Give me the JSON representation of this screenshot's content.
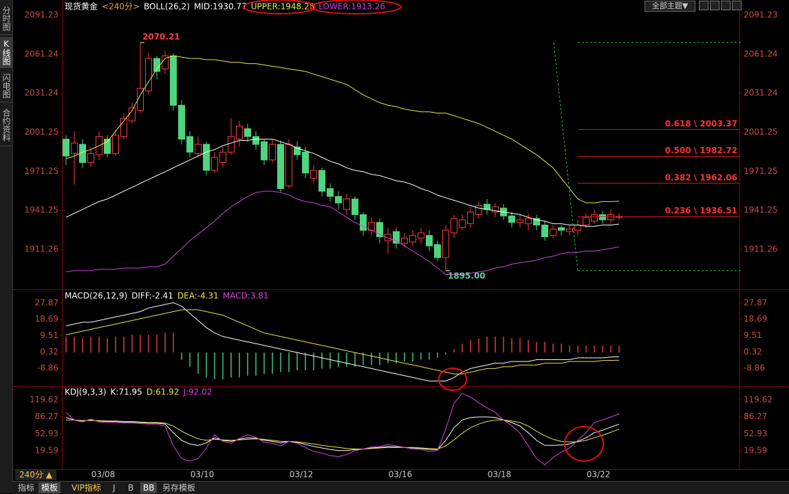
{
  "ui": {
    "side_tabs": [
      "分时图",
      "K线图",
      "闪电图",
      "合约资料"
    ],
    "theme": "全部主题▼",
    "period_button": "240分 ▲",
    "bottom_tabs": [
      "指标",
      "模板",
      "VIP指标",
      "J",
      "B",
      "BB",
      "另存模板"
    ]
  },
  "chart_data": [
    {
      "type": "candlestick",
      "title": "现货黄金",
      "period": "<240分>",
      "indicator": "BOLL(26,2)",
      "categories": [
        null,
        null,
        null,
        null,
        "03/08",
        null,
        null,
        null,
        null,
        null,
        null,
        null,
        null,
        null,
        null,
        null,
        "03/10",
        null,
        null,
        null,
        null,
        null,
        null,
        null,
        null,
        null,
        null,
        null,
        "03/12",
        null,
        null,
        null,
        null,
        null,
        null,
        null,
        null,
        null,
        null,
        null,
        "03/16",
        null,
        null,
        null,
        null,
        null,
        null,
        null,
        null,
        null,
        null,
        null,
        "03/18",
        null,
        null,
        null,
        null,
        null,
        null,
        null,
        null,
        null,
        null,
        null,
        "03/22",
        null,
        null,
        null
      ],
      "open": [
        1996,
        1985,
        1992,
        1978,
        1984,
        1996,
        1985,
        1998,
        2010,
        2018,
        2033,
        2058,
        2050,
        2060,
        2022,
        1998,
        1985,
        1992,
        1972,
        1978,
        1986,
        1996,
        2004,
        1998,
        1994,
        1980,
        1992,
        1960,
        1990,
        1986,
        1966,
        1972,
        1958,
        1952,
        1942,
        1950,
        1938,
        1926,
        1932,
        1918,
        1925,
        1916,
        1917,
        1920,
        1922,
        1915,
        1905,
        1924,
        1928,
        1931,
        1938,
        1946,
        1940,
        1943,
        1937,
        1932,
        1931,
        1935,
        1930,
        1922,
        1928,
        1925,
        1926,
        1930,
        1933,
        1938,
        1934,
        1936
      ],
      "high": [
        1999,
        2002,
        1996,
        1990,
        2002,
        1999,
        2003,
        2016,
        2024,
        2070.21,
        2062,
        2060,
        2064,
        2062,
        2026,
        2002,
        1998,
        1994,
        1986,
        1990,
        2012,
        2010,
        2008,
        2002,
        1996,
        1996,
        1995,
        1996,
        1994,
        1990,
        1976,
        1974,
        1962,
        1956,
        1954,
        1952,
        1940,
        1936,
        1935,
        1928,
        1928,
        1924,
        1926,
        1928,
        1926,
        1918,
        1930,
        1938,
        1938,
        1944,
        1948,
        1950,
        1947,
        1946,
        1940,
        1938,
        1939,
        1938,
        1933,
        1930,
        1930,
        1930,
        1934,
        1939,
        1942,
        1941,
        1942,
        1939
      ],
      "low": [
        1976,
        1961,
        1974,
        1975,
        1980,
        1982,
        1983,
        1996,
        2008,
        2016,
        2030,
        2042,
        2046,
        2018,
        1992,
        1982,
        1982,
        1968,
        1970,
        1974,
        1984,
        1990,
        1994,
        1988,
        1976,
        1978,
        1955,
        1958,
        1980,
        1966,
        1962,
        1952,
        1948,
        1942,
        1938,
        1934,
        1922,
        1922,
        1916,
        1908,
        1912,
        1913,
        1914,
        1916,
        1910,
        1902,
        1895,
        1920,
        1926,
        1928,
        1935,
        1938,
        1936,
        1934,
        1928,
        1928,
        1926,
        1926,
        1918,
        1920,
        1922,
        1922,
        1922,
        1928,
        1931,
        1931,
        1932,
        1934
      ],
      "close": [
        1983,
        1993,
        1978,
        1985,
        1998,
        1985,
        1999,
        2012,
        2020,
        2035,
        2058,
        2048,
        2060,
        2022,
        1996,
        1986,
        1992,
        1972,
        1982,
        1986,
        1998,
        2006,
        1998,
        1992,
        1980,
        1992,
        1958,
        1992,
        1984,
        1970,
        1972,
        1956,
        1952,
        1947,
        1950,
        1938,
        1926,
        1932,
        1921,
        1923,
        1916,
        1920,
        1922,
        1924,
        1914,
        1905,
        1926,
        1935,
        1934,
        1940,
        1945,
        1942,
        1944,
        1937,
        1932,
        1934,
        1935,
        1930,
        1921,
        1927,
        1926,
        1927,
        1930,
        1936,
        1938,
        1934,
        1938,
        1936.51
      ],
      "up_color": "#ff3c3c",
      "down_color": "#4fd47f",
      "series": [
        {
          "name": "MID:1930.77",
          "color": "#ffffff",
          "values": [
            1936,
            1939,
            1942,
            1945,
            1948,
            1950,
            1953,
            1956,
            1959,
            1962,
            1965,
            1968,
            1971,
            1974,
            1977,
            1980,
            1983,
            1986,
            1988,
            1991,
            1993,
            1995,
            1995,
            1996,
            1996,
            1996,
            1994,
            1992,
            1989,
            1987,
            1985,
            1982,
            1979,
            1977,
            1974,
            1972,
            1971,
            1969,
            1968,
            1966,
            1964,
            1963,
            1961,
            1958,
            1956,
            1953,
            1951,
            1949,
            1947,
            1945,
            1943,
            1942,
            1941,
            1940,
            1939,
            1938,
            1936,
            1934,
            1933,
            1931,
            1931,
            1930,
            1930,
            1929,
            1929,
            1930,
            1930,
            1930.77
          ]
        },
        {
          "name": "UPPER:1948.28",
          "color": "#e8e84a",
          "values": [
            1981,
            1983,
            1986,
            1988,
            1991,
            1994,
            2002,
            2010,
            2018,
            2030,
            2040,
            2050,
            2058,
            2060,
            2059,
            2058,
            2058,
            2057,
            2057,
            2056,
            2055,
            2055,
            2054,
            2054,
            2053,
            2052,
            2051,
            2050,
            2049,
            2048,
            2046,
            2044,
            2042,
            2040,
            2038,
            2034,
            2030,
            2027,
            2024,
            2022,
            2021,
            2019,
            2018,
            2017,
            2017,
            2016,
            2016,
            2014,
            2012,
            2010,
            2008,
            2005,
            2002,
            1999,
            1996,
            1992,
            1988,
            1984,
            1979,
            1974,
            1966,
            1958,
            1950,
            1947,
            1947,
            1948,
            1948,
            1948.28
          ]
        },
        {
          "name": "LOWER:1913.26",
          "color": "#d040e0",
          "values": [
            1894,
            1895,
            1895,
            1895,
            1896,
            1896,
            1896,
            1897,
            1897,
            1897,
            1898,
            1898,
            1900,
            1906,
            1912,
            1918,
            1923,
            1928,
            1933,
            1939,
            1944,
            1948,
            1952,
            1955,
            1956,
            1956,
            1955,
            1953,
            1950,
            1948,
            1947,
            1945,
            1944,
            1940,
            1936,
            1932,
            1929,
            1926,
            1923,
            1920,
            1918,
            1914,
            1910,
            1906,
            1902,
            1897,
            1892,
            1892,
            1892,
            1893,
            1894,
            1895,
            1897,
            1898,
            1900,
            1901,
            1902,
            1903,
            1905,
            1906,
            1908,
            1909,
            1909,
            1910,
            1910,
            1911,
            1912,
            1913.26
          ]
        }
      ],
      "annotations": [
        {
          "value": 2070.21
        },
        {
          "value": 1895,
          "label": "1895.00"
        }
      ],
      "fib_levels": [
        {
          "value": 2003.37,
          "label": "0.618 \\ 2003.37"
        },
        {
          "value": 1982.72,
          "label": "0.500 \\ 1982.72"
        },
        {
          "value": 1962.06,
          "label": "0.382 \\ 1962.06"
        },
        {
          "value": 1936.51,
          "label": "0.236 \\ 1936.51"
        }
      ],
      "fib_range": [
        2070.21,
        1895
      ],
      "ylim": [
        1881.2,
        2097.6
      ],
      "yticks": [
        2091.23,
        2061.24,
        2031.24,
        2001.25,
        1971.25,
        1941.25,
        1911.26
      ]
    },
    {
      "type": "macd",
      "title": "MACD(26,12,9)",
      "bars": {
        "name": "MACD:3.81",
        "color": "#e040e0",
        "up_color": "#e03c3c",
        "down_color": "#3cc878",
        "values": [
          9,
          9,
          8,
          9,
          9,
          8,
          9,
          9,
          10,
          10,
          10,
          10,
          11,
          11,
          -4,
          -8,
          -12,
          -14,
          -15,
          -15,
          -14,
          -14,
          -13,
          -13,
          -12,
          -12,
          -11,
          -11,
          -10,
          -10,
          -10,
          -9,
          -9,
          -8,
          -8,
          -8,
          -7,
          -7,
          -7,
          -6,
          -6,
          -5,
          -5,
          -4,
          -4,
          -3,
          -1,
          2,
          5,
          7,
          8,
          9,
          9,
          9,
          8,
          8,
          7,
          6,
          6,
          5,
          5,
          4,
          4,
          4,
          4,
          4,
          4,
          3.81
        ]
      },
      "series": [
        {
          "name": "DIFF:-2.41",
          "color": "#ffffff",
          "values": [
            15,
            16,
            17,
            17,
            18,
            19,
            20,
            21,
            22,
            23,
            25,
            26,
            27,
            28,
            26,
            22,
            18,
            14,
            11,
            9,
            8,
            7,
            6,
            5,
            4,
            3,
            2,
            1,
            0,
            -1,
            -2,
            -3,
            -4,
            -5,
            -6,
            -7,
            -8,
            -9,
            -10,
            -11,
            -12,
            -13,
            -14,
            -15,
            -16,
            -16,
            -16,
            -14,
            -11,
            -9,
            -8,
            -7,
            -6,
            -6,
            -5,
            -5,
            -5,
            -4,
            -4,
            -4,
            -4,
            -4,
            -3,
            -3,
            -3,
            -3,
            -2.5,
            -2.41
          ]
        },
        {
          "name": "DEA:-4.31",
          "color": "#e8e84a",
          "values": [
            10,
            11,
            12,
            13,
            14,
            15,
            16,
            17,
            18,
            19,
            20,
            21,
            22,
            23,
            24,
            24,
            24,
            23,
            22,
            21,
            19,
            17,
            15,
            13,
            11,
            10,
            9,
            8,
            7,
            6,
            5,
            4,
            3,
            2,
            1,
            0,
            -1,
            -2,
            -3,
            -4,
            -5,
            -6,
            -7,
            -8,
            -9,
            -10,
            -11,
            -12,
            -12,
            -11,
            -10,
            -9,
            -9,
            -8,
            -8,
            -7,
            -7,
            -7,
            -6,
            -6,
            -6,
            -5,
            -5,
            -5,
            -5,
            -4.5,
            -4.4,
            -4.31
          ]
        }
      ],
      "ylim": [
        -18.1,
        34.0
      ],
      "yticks": [
        27.87,
        18.69,
        9.51,
        0.32,
        -8.86
      ]
    },
    {
      "type": "line",
      "title": "KDJ(9,3,3)",
      "series": [
        {
          "name": "K:71.95",
          "color": "#ffffff",
          "values": [
            85,
            80,
            78,
            80,
            78,
            77,
            77,
            76,
            76,
            75,
            74,
            74,
            72,
            55,
            40,
            33,
            30,
            35,
            45,
            40,
            38,
            42,
            45,
            44,
            40,
            38,
            35,
            38,
            36,
            32,
            28,
            25,
            22,
            20,
            20,
            22,
            23,
            25,
            26,
            28,
            27,
            26,
            25,
            24,
            22,
            22,
            40,
            65,
            80,
            85,
            86,
            86,
            85,
            80,
            75,
            68,
            55,
            40,
            30,
            30,
            31,
            33,
            38,
            45,
            55,
            60,
            66,
            71.95
          ]
        },
        {
          "name": "D:61.92",
          "color": "#e8e84a",
          "values": [
            80,
            80,
            79,
            79,
            79,
            78,
            78,
            77,
            77,
            76,
            75,
            75,
            74,
            68,
            58,
            50,
            43,
            40,
            42,
            41,
            40,
            41,
            42,
            43,
            42,
            40,
            38,
            38,
            37,
            35,
            33,
            30,
            28,
            26,
            24,
            23,
            23,
            24,
            25,
            26,
            26,
            26,
            26,
            25,
            24,
            23,
            29,
            41,
            54,
            65,
            72,
            77,
            80,
            80,
            78,
            75,
            68,
            58,
            49,
            42,
            38,
            37,
            37,
            40,
            45,
            50,
            56,
            61.92
          ]
        },
        {
          "name": "J:92.02",
          "color": "#e040e0",
          "values": [
            95,
            80,
            76,
            82,
            76,
            75,
            75,
            74,
            74,
            73,
            72,
            72,
            68,
            29,
            4,
            -1,
            4,
            25,
            51,
            38,
            34,
            44,
            51,
            46,
            36,
            34,
            29,
            38,
            34,
            26,
            18,
            15,
            10,
            8,
            12,
            20,
            23,
            27,
            28,
            32,
            29,
            26,
            23,
            22,
            18,
            20,
            62,
            113,
            132,
            125,
            114,
            104,
            95,
            80,
            69,
            54,
            29,
            4,
            -8,
            6,
            17,
            25,
            40,
            55,
            75,
            80,
            86,
            92.02
          ]
        }
      ],
      "ylim": [
        -16.9,
        142.6
      ],
      "yticks": [
        119.62,
        86.27,
        52.93,
        19.59
      ]
    }
  ]
}
